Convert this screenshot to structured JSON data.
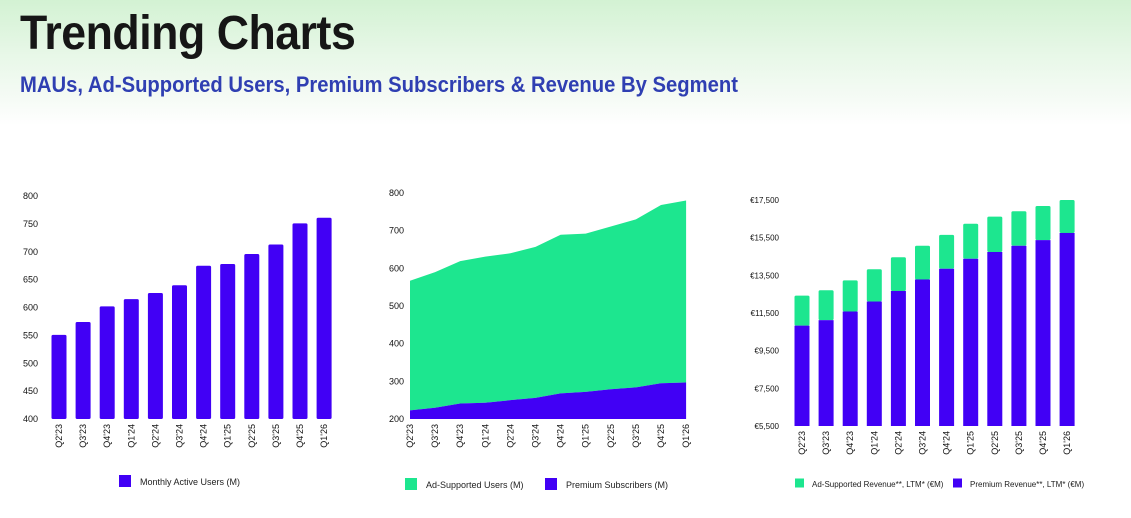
{
  "header": {
    "title": "Trending Charts",
    "subtitle": "MAUs, Ad-Supported Users, Premium Subscribers & Revenue By Segment"
  },
  "colors": {
    "purple": "#4100f5",
    "green": "#1de68f",
    "title": "#161616",
    "subtitle": "#2f3fb2"
  },
  "chart_data": [
    {
      "id": "mau",
      "type": "bar",
      "title": "",
      "xlabel": "",
      "ylabel": "",
      "categories": [
        "Q2'23",
        "Q3'23",
        "Q4'23",
        "Q1'24",
        "Q2'24",
        "Q3'24",
        "Q4'24",
        "Q1'25",
        "Q2'25",
        "Q3'25",
        "Q4'25",
        "Q1'26"
      ],
      "series": [
        {
          "name": "Monthly Active Users (M)",
          "color": "#4100f5",
          "values": [
            551,
            574,
            602,
            615,
            626,
            640,
            675,
            678,
            696,
            713,
            751,
            761
          ]
        }
      ],
      "ylim": [
        400,
        800
      ],
      "yticks": [
        400,
        450,
        500,
        550,
        600,
        650,
        700,
        750,
        800
      ],
      "ytick_labels": [
        "400",
        "450",
        "500",
        "550",
        "600",
        "650",
        "700",
        "750",
        "800"
      ],
      "grid": false,
      "legend": {
        "position": "bottom",
        "entries": [
          "Monthly Active Users (M)"
        ]
      }
    },
    {
      "id": "users",
      "type": "area",
      "stacked": true,
      "title": "",
      "xlabel": "",
      "ylabel": "",
      "categories": [
        "Q2'23",
        "Q3'23",
        "Q4'23",
        "Q1'24",
        "Q2'24",
        "Q3'24",
        "Q4'24",
        "Q1'25",
        "Q2'25",
        "Q3'25",
        "Q4'25",
        "Q1'26"
      ],
      "series": [
        {
          "name": "Premium Subscribers (M)",
          "color": "#4100f5",
          "values": [
            223,
            230,
            241,
            243,
            250,
            256,
            268,
            272,
            279,
            284,
            295,
            297
          ]
        },
        {
          "name": "Ad-Supported Users (M)",
          "color": "#1de68f",
          "values": [
            344,
            360,
            378,
            388,
            390,
            401,
            421,
            420,
            432,
            446,
            473,
            483
          ]
        }
      ],
      "ylim": [
        200,
        800
      ],
      "yticks": [
        200,
        300,
        400,
        500,
        600,
        700,
        800
      ],
      "ytick_labels": [
        "200",
        "300",
        "400",
        "500",
        "600",
        "700",
        "800"
      ],
      "grid": false,
      "legend": {
        "position": "bottom",
        "entries": [
          "Ad-Supported Users (M)",
          "Premium Subscribers (M)"
        ]
      }
    },
    {
      "id": "revenue",
      "type": "bar",
      "stacked": true,
      "title": "",
      "xlabel": "",
      "ylabel": "",
      "categories": [
        "Q2'23",
        "Q3'23",
        "Q4'23",
        "Q1'24",
        "Q2'24",
        "Q3'24",
        "Q4'24",
        "Q1'25",
        "Q2'25",
        "Q3'25",
        "Q4'25",
        "Q1'26"
      ],
      "series": [
        {
          "name": "Premium Revenue**, LTM* (€M)",
          "color": "#4100f5",
          "values": [
            10830,
            11120,
            11580,
            12110,
            12670,
            13280,
            13850,
            14380,
            14740,
            15070,
            15370,
            15750
          ]
        },
        {
          "name": "Ad-Supported Revenue**, LTM* (€M)",
          "color": "#1de68f",
          "values": [
            1590,
            1590,
            1650,
            1710,
            1790,
            1790,
            1800,
            1860,
            1880,
            1830,
            1810,
            1750
          ]
        }
      ],
      "ylim": [
        5500,
        17500
      ],
      "yticks": [
        5500,
        7500,
        9500,
        11500,
        13500,
        15500,
        17500
      ],
      "ytick_labels": [
        "€5,500",
        "€7,500",
        "€9,500",
        "€11,500",
        "€13,500",
        "€15,500",
        "€17,500"
      ],
      "grid": false,
      "legend": {
        "position": "bottom",
        "entries": [
          "Ad-Supported Revenue**, LTM* (€M)",
          "Premium Revenue**, LTM* (€M)"
        ]
      }
    }
  ]
}
